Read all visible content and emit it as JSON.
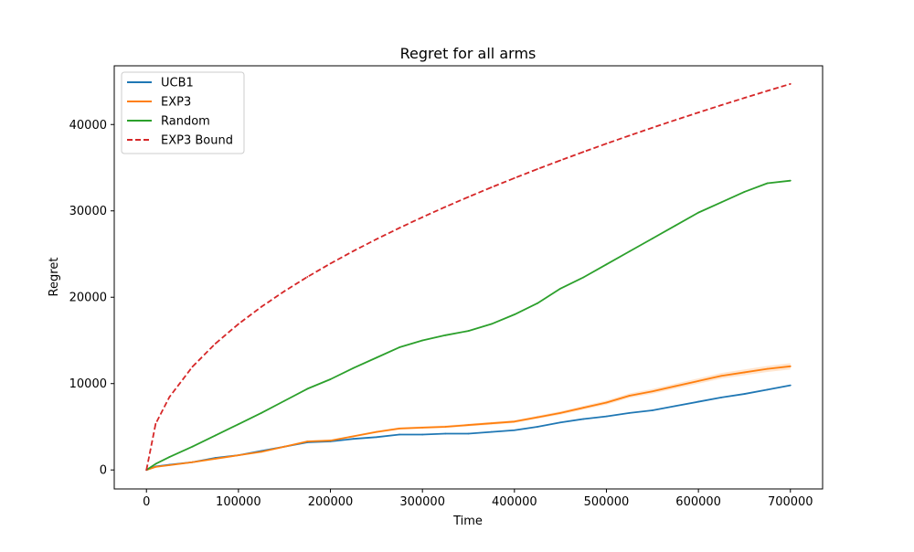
{
  "chart_data": {
    "type": "line",
    "title": "Regret for all arms",
    "xlabel": "Time",
    "ylabel": "Regret",
    "xlim": [
      -35000,
      735000
    ],
    "ylim": [
      -2200,
      46800
    ],
    "x_ticks": [
      0,
      100000,
      200000,
      300000,
      400000,
      500000,
      600000,
      700000
    ],
    "y_ticks": [
      0,
      10000,
      20000,
      30000,
      40000
    ],
    "x_tick_labels": [
      "0",
      "100000",
      "200000",
      "300000",
      "400000",
      "500000",
      "600000",
      "700000"
    ],
    "y_tick_labels": [
      "0",
      "10000",
      "20000",
      "30000",
      "40000"
    ],
    "grid": false,
    "legend_position": "top-left",
    "x": [
      0,
      10000,
      25000,
      50000,
      75000,
      100000,
      125000,
      150000,
      175000,
      200000,
      225000,
      250000,
      275000,
      300000,
      325000,
      350000,
      375000,
      400000,
      425000,
      450000,
      475000,
      500000,
      525000,
      550000,
      575000,
      600000,
      625000,
      650000,
      675000,
      700000
    ],
    "series": [
      {
        "name": "UCB1",
        "color": "#1f77b4",
        "style": "solid",
        "values": [
          0,
          400,
          600,
          900,
          1400,
          1700,
          2200,
          2700,
          3200,
          3300,
          3600,
          3800,
          4100,
          4100,
          4200,
          4200,
          4400,
          4600,
          5000,
          5500,
          5900,
          6200,
          6600,
          6900,
          7400,
          7900,
          8400,
          8800,
          9300,
          9800
        ]
      },
      {
        "name": "EXP3",
        "color": "#ff7f0e",
        "style": "solid",
        "band": true,
        "values": [
          0,
          350,
          550,
          900,
          1300,
          1700,
          2100,
          2700,
          3300,
          3400,
          3900,
          4400,
          4800,
          4900,
          5000,
          5200,
          5400,
          5600,
          6100,
          6600,
          7200,
          7800,
          8600,
          9100,
          9700,
          10300,
          10900,
          11300,
          11700,
          12000
        ]
      },
      {
        "name": "Random",
        "color": "#2ca02c",
        "style": "solid",
        "values": [
          0,
          700,
          1500,
          2700,
          4000,
          5300,
          6600,
          8000,
          9400,
          10500,
          11800,
          13000,
          14200,
          15000,
          15600,
          16100,
          16900,
          18000,
          19300,
          21000,
          22300,
          23800,
          25300,
          26800,
          28300,
          29800,
          31000,
          32200,
          33200,
          33500
        ]
      },
      {
        "name": "EXP3 Bound",
        "color": "#d62728",
        "style": "dashed",
        "values": [
          0,
          5344,
          8450,
          11950,
          14636,
          16900,
          18895,
          20699,
          22357,
          23900,
          25350,
          26721,
          28025,
          29271,
          30466,
          31616,
          32725,
          33798,
          34838,
          35849,
          36831,
          37788,
          38721,
          39632,
          40522,
          41392,
          42245,
          43080,
          43898,
          44700
        ]
      }
    ]
  }
}
